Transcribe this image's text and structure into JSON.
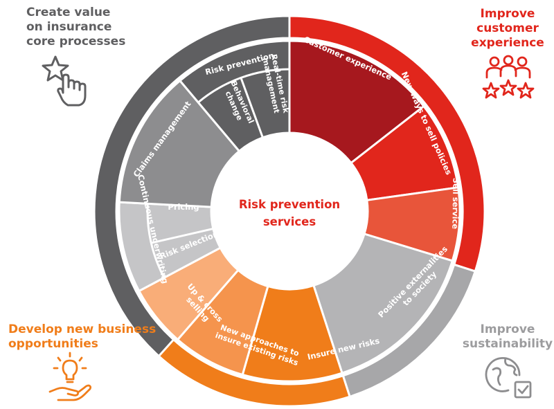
{
  "center": {
    "title_line1": "Risk prevention",
    "title_line2": "services"
  },
  "corners": {
    "core": [
      "Create value",
      "on insurance",
      "core processes"
    ],
    "customer": [
      "Improve",
      "customer",
      "experience"
    ],
    "business": [
      "Develop new business",
      "opportunities"
    ],
    "sustainability": [
      "Improve",
      "sustainability"
    ]
  },
  "segments": {
    "customer_experience": [
      "Customer experience"
    ],
    "new_ways": [
      "New ways to sell policies"
    ],
    "sell_service": [
      "Sell service"
    ],
    "positive_externalities": [
      "Positive externalities",
      "to society"
    ],
    "insure_new_risks": [
      "Insure new risks"
    ],
    "new_approaches": [
      "New approaches to",
      "insure existing risks"
    ],
    "up_cross": [
      "Up & cross",
      "selling"
    ],
    "pricing": [
      "Pricing"
    ],
    "risk_selection": [
      "Risk selection"
    ],
    "continuous_underwriting": [
      "Continuous underwriting"
    ],
    "claims_management": [
      "Claims management"
    ],
    "risk_prevention": [
      "Risk prevention"
    ],
    "behavioral_change": [
      "Behavioral",
      "change"
    ],
    "real_time": [
      "Real-time risk",
      "management"
    ]
  },
  "colors": {
    "gray_outer": "#5f5f61",
    "red_outer": "#e1261c",
    "orange_outer": "#f07d1a",
    "light_gray_outer": "#a7a7a9",
    "dark_red": "#a6181e",
    "red": "#e1261c",
    "coral": "#e8553a",
    "silver": "#b4b4b6",
    "orange": "#f07d1a",
    "orange_mid": "#f5944d",
    "peach": "#f9ad78",
    "light_gray": "#c5c5c7",
    "mid_gray": "#8d8d8f",
    "dark_gray": "#5f5f61",
    "center_text": "#e1261c"
  },
  "icons": {
    "core": "star-hand-icon",
    "customer": "people-stars-icon",
    "business": "lightbulb-hand-icon",
    "sustainability": "globe-check-icon"
  }
}
